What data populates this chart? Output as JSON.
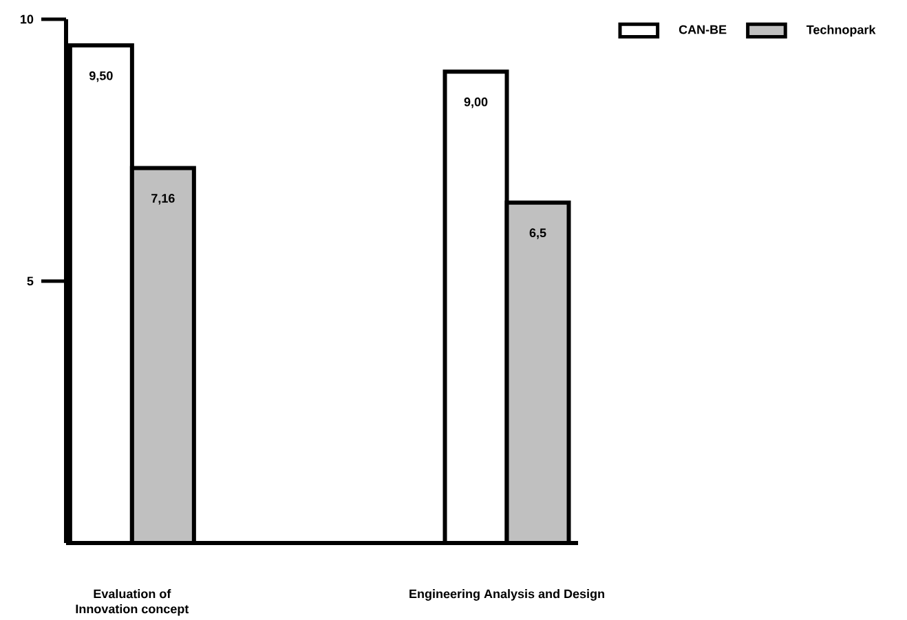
{
  "chart_data": {
    "type": "bar",
    "categories": [
      "Evaluation of\nInnovation concept",
      "Engineering Analysis and Design"
    ],
    "series": [
      {
        "name": "CAN-BE",
        "color": "#ffffff",
        "values": [
          9.5,
          9.0
        ],
        "value_labels": [
          "9,50",
          "9,00"
        ]
      },
      {
        "name": "Technopark",
        "color": "#c0c0c0",
        "values": [
          7.16,
          6.5
        ],
        "value_labels": [
          "7,16",
          "6,5"
        ]
      }
    ],
    "ylim": [
      0,
      10
    ],
    "yticks": [
      5,
      10
    ],
    "legend": "top right"
  }
}
